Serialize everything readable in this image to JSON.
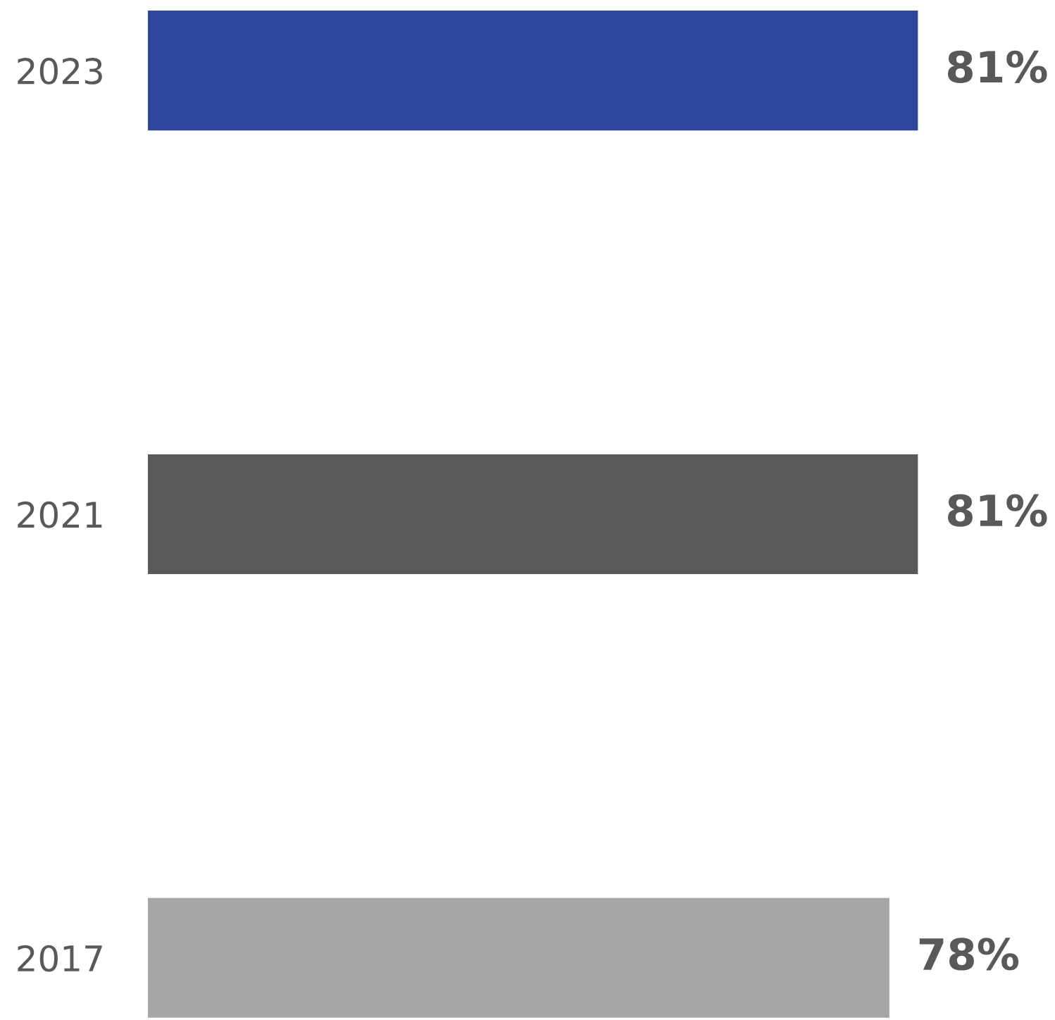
{
  "chart_data": {
    "type": "bar",
    "orientation": "horizontal",
    "categories": [
      "2023",
      "2021",
      "2017"
    ],
    "values": [
      81,
      81,
      78
    ],
    "colors": [
      "#2e479c",
      "#595959",
      "#a6a6a6"
    ],
    "value_labels": [
      "81%",
      "81%",
      "78%"
    ],
    "tick_labels": "y",
    "grid": false,
    "legend": false
  }
}
